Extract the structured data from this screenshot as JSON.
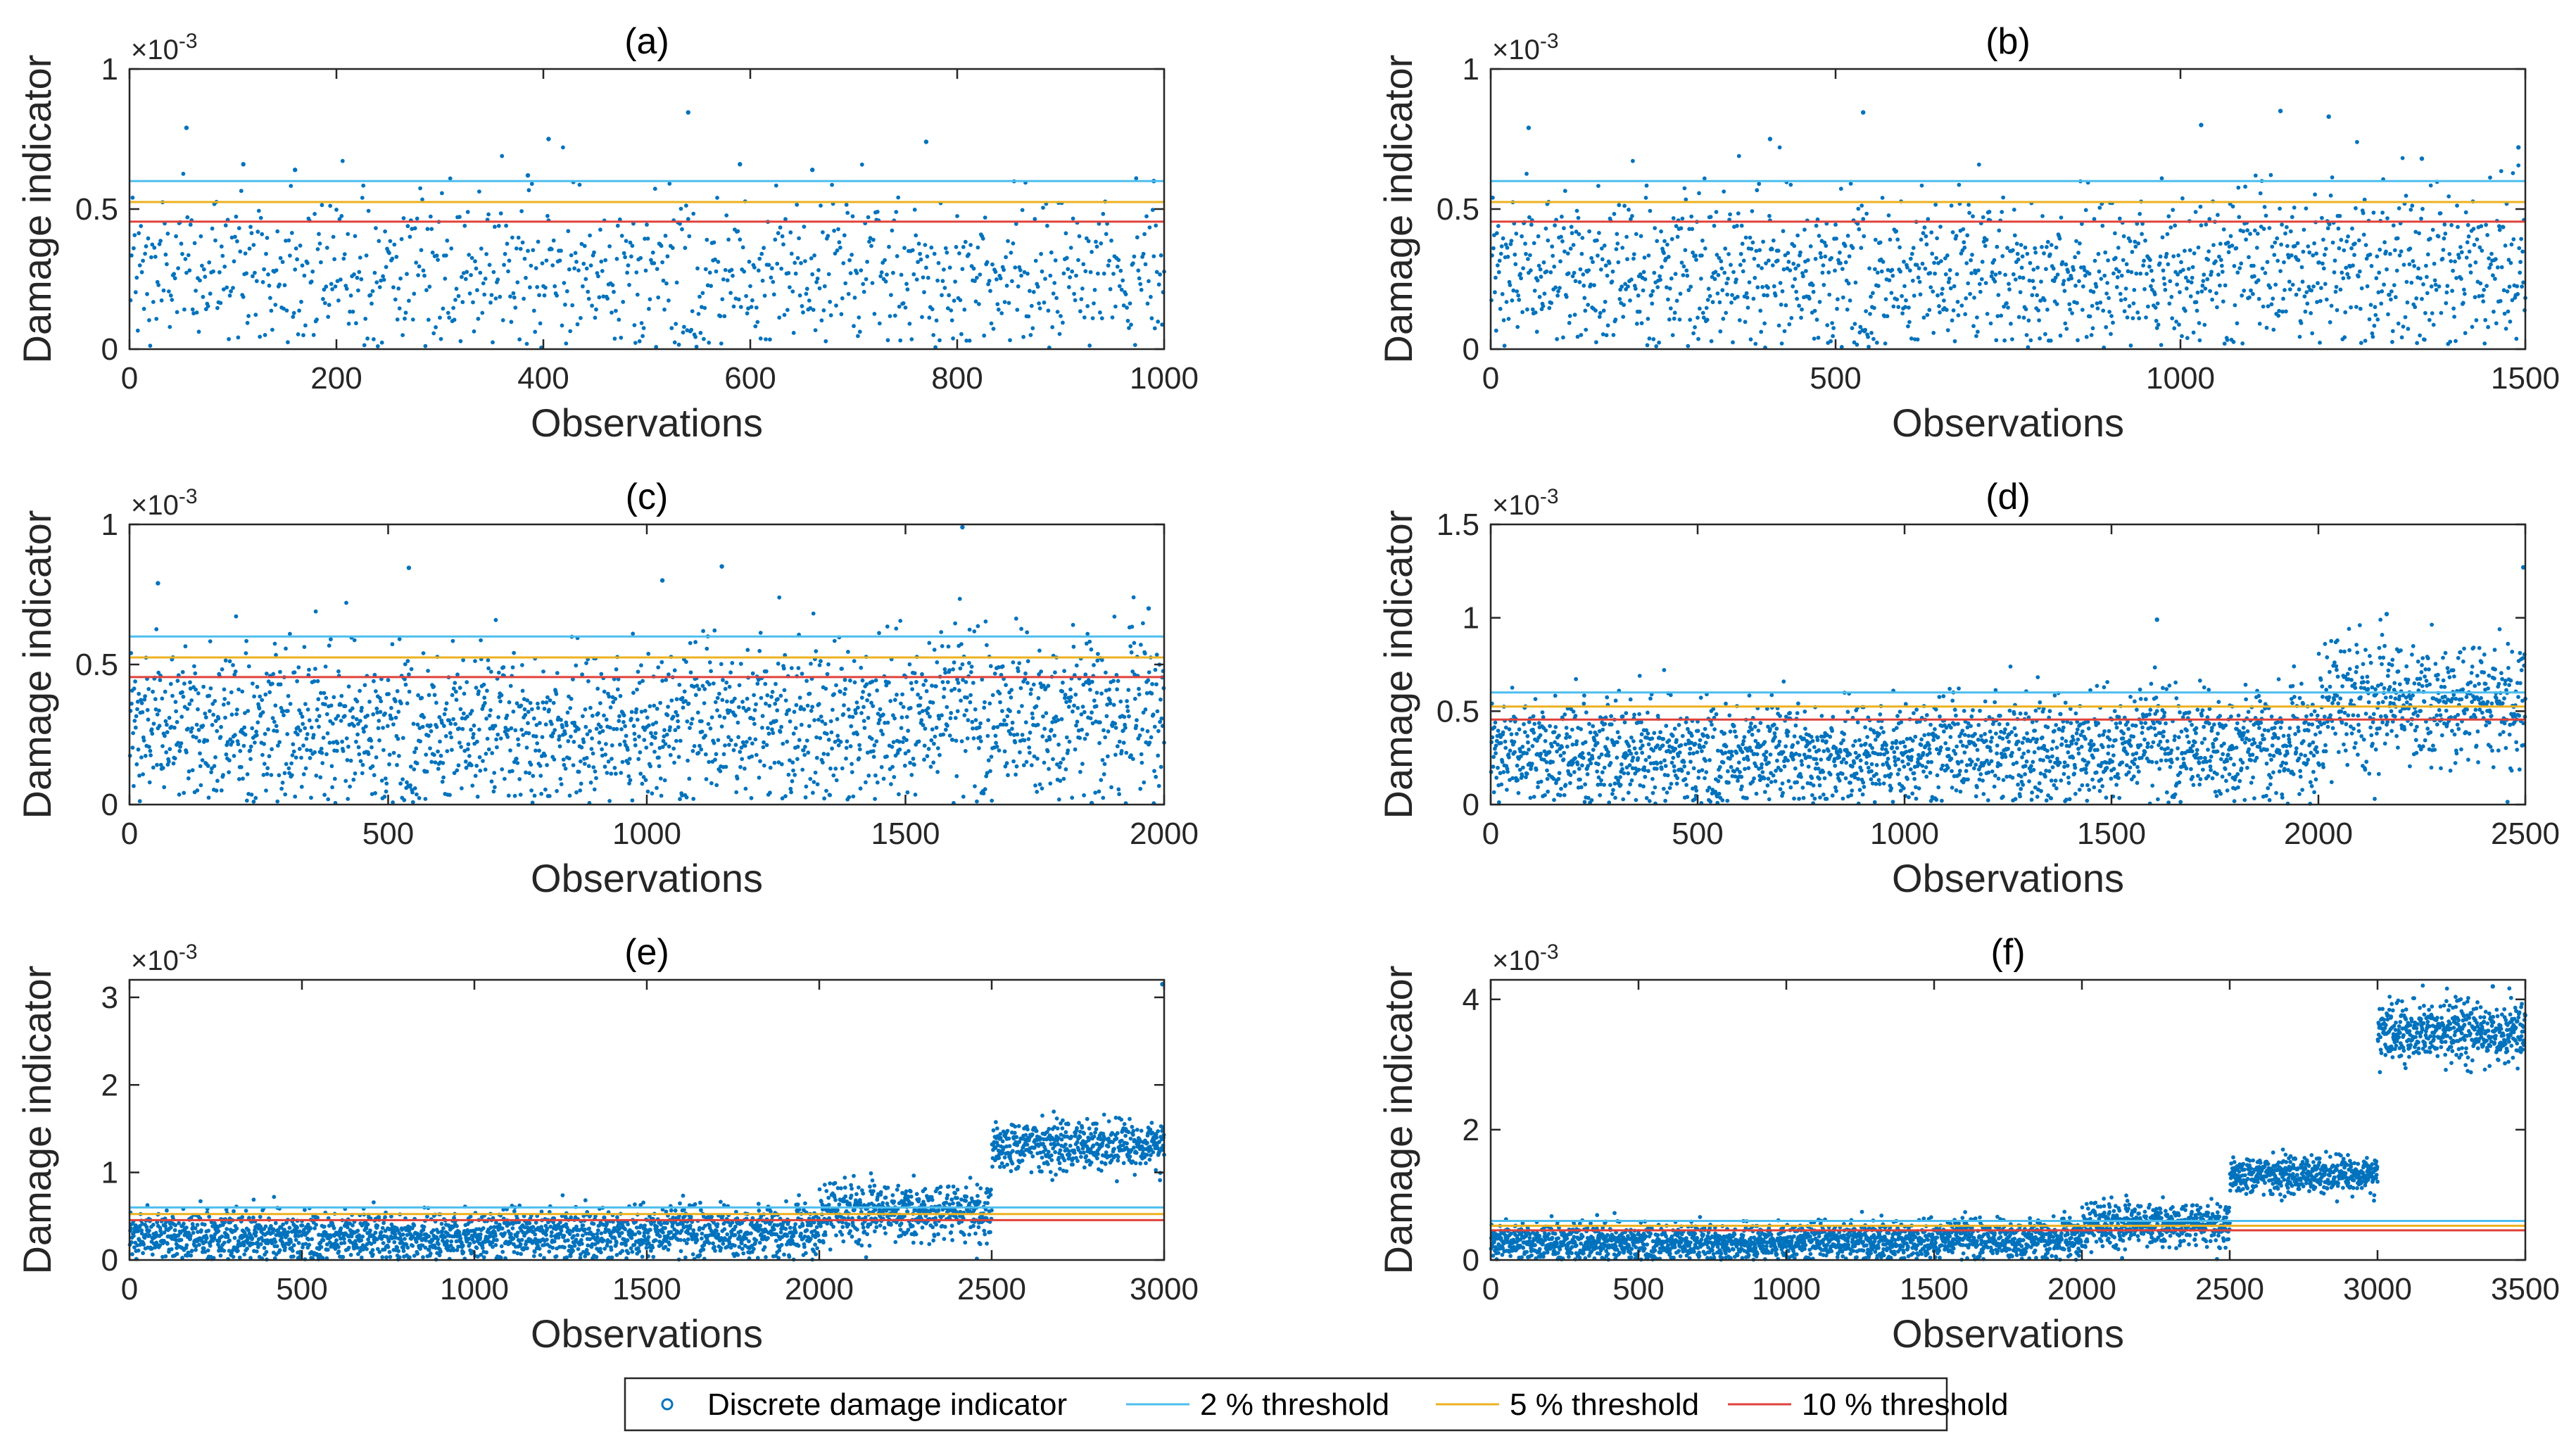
{
  "legend": {
    "items": [
      {
        "label": "Discrete damage indicator",
        "kind": "marker",
        "color": "#0072BD"
      },
      {
        "label": "2 % threshold",
        "kind": "line",
        "color": "#4DBEEE"
      },
      {
        "label": "5 % threshold",
        "kind": "line",
        "color": "#EDB120"
      },
      {
        "label": "10 % threshold",
        "kind": "line",
        "color": "#E0423A"
      }
    ]
  },
  "chart_data": [
    {
      "type": "scatter",
      "title": "(a)",
      "xlabel": "Observations",
      "ylabel": "Damage indicator",
      "y_exponent_label": "×10",
      "y_exponent": "-3",
      "xlim": [
        0,
        1000
      ],
      "ylim": [
        0,
        1
      ],
      "xticks": [
        0,
        200,
        400,
        600,
        800,
        1000
      ],
      "xtick_labels": [
        "0",
        "200",
        "400",
        "600",
        "800",
        "1000"
      ],
      "yticks": [
        0,
        0.5,
        1
      ],
      "ytick_labels": [
        "0",
        "0.5",
        "1"
      ],
      "thresholds": {
        "2 % threshold": 0.6,
        "5 % threshold": 0.525,
        "10 % threshold": 0.455
      },
      "series": [
        {
          "name": "Discrete damage indicator",
          "n": 1000,
          "segments": [
            {
              "from": 0,
              "to": 1000,
              "mean": 0.27,
              "sd": 0.145
            }
          ]
        }
      ],
      "outliers": [
        [
          55,
          0.79
        ],
        [
          110,
          0.66
        ],
        [
          160,
          0.64
        ],
        [
          385,
          0.62
        ],
        [
          405,
          0.75
        ],
        [
          540,
          0.845
        ],
        [
          590,
          0.66
        ],
        [
          770,
          0.74
        ],
        [
          660,
          0.64
        ],
        [
          990,
          0.6
        ]
      ],
      "color": "#0072BD"
    },
    {
      "type": "scatter",
      "title": "(b)",
      "xlabel": "Observations",
      "ylabel": "Damage indicator",
      "y_exponent_label": "×10",
      "y_exponent": "-3",
      "xlim": [
        0,
        1500
      ],
      "ylim": [
        0,
        1
      ],
      "xticks": [
        0,
        500,
        1000,
        1500
      ],
      "xtick_labels": [
        "0",
        "500",
        "1000",
        "1500"
      ],
      "yticks": [
        0,
        0.5,
        1
      ],
      "ytick_labels": [
        "0",
        "0.5",
        "1"
      ],
      "thresholds": {
        "2 % threshold": 0.6,
        "5 % threshold": 0.525,
        "10 % threshold": 0.455
      },
      "series": [
        {
          "name": "Discrete damage indicator",
          "n": 1500,
          "segments": [
            {
              "from": 0,
              "to": 1000,
              "mean": 0.27,
              "sd": 0.145
            },
            {
              "from": 1000,
              "to": 1500,
              "mean": 0.3,
              "sd": 0.15
            }
          ]
        }
      ],
      "outliers": [
        [
          55,
          0.79
        ],
        [
          405,
          0.75
        ],
        [
          540,
          0.845
        ],
        [
          1030,
          0.8
        ],
        [
          1145,
          0.85
        ],
        [
          1215,
          0.83
        ],
        [
          1350,
          0.68
        ],
        [
          1490,
          0.72
        ]
      ],
      "color": "#0072BD"
    },
    {
      "type": "scatter",
      "title": "(c)",
      "xlabel": "Observations",
      "ylabel": "Damage indicator",
      "y_exponent_label": "×10",
      "y_exponent": "-3",
      "xlim": [
        0,
        2000
      ],
      "ylim": [
        0,
        1
      ],
      "xticks": [
        0,
        500,
        1000,
        1500,
        2000
      ],
      "xtick_labels": [
        "0",
        "500",
        "1000",
        "1500",
        "2000"
      ],
      "yticks": [
        0,
        0.5,
        1
      ],
      "ytick_labels": [
        "0",
        "0.5",
        "1"
      ],
      "thresholds": {
        "2 % threshold": 0.6,
        "5 % threshold": 0.525,
        "10 % threshold": 0.455
      },
      "series": [
        {
          "name": "Discrete damage indicator",
          "n": 2000,
          "segments": [
            {
              "from": 0,
              "to": 1000,
              "mean": 0.27,
              "sd": 0.145
            },
            {
              "from": 1000,
              "to": 1500,
              "mean": 0.3,
              "sd": 0.15
            },
            {
              "from": 1500,
              "to": 2000,
              "mean": 0.32,
              "sd": 0.155
            }
          ]
        }
      ],
      "outliers": [
        [
          55,
          0.79
        ],
        [
          540,
          0.845
        ],
        [
          1030,
          0.8
        ],
        [
          1145,
          0.85
        ],
        [
          1610,
          0.99
        ],
        [
          1860,
          0.005
        ],
        [
          1970,
          0.7
        ]
      ],
      "color": "#0072BD"
    },
    {
      "type": "scatter",
      "title": "(d)",
      "xlabel": "Observations",
      "ylabel": "Damage indicator",
      "y_exponent_label": "×10",
      "y_exponent": "-3",
      "xlim": [
        0,
        2500
      ],
      "ylim": [
        0,
        1.5
      ],
      "xticks": [
        0,
        500,
        1000,
        1500,
        2000,
        2500
      ],
      "xtick_labels": [
        "0",
        "500",
        "1000",
        "1500",
        "2000",
        "2500"
      ],
      "yticks": [
        0,
        0.5,
        1,
        1.5
      ],
      "ytick_labels": [
        "0",
        "0.5",
        "1",
        "1.5"
      ],
      "thresholds": {
        "2 % threshold": 0.6,
        "5 % threshold": 0.525,
        "10 % threshold": 0.455
      },
      "series": [
        {
          "name": "Discrete damage indicator",
          "n": 2500,
          "segments": [
            {
              "from": 0,
              "to": 1000,
              "mean": 0.27,
              "sd": 0.145
            },
            {
              "from": 1000,
              "to": 1500,
              "mean": 0.3,
              "sd": 0.15
            },
            {
              "from": 1500,
              "to": 2000,
              "mean": 0.32,
              "sd": 0.155
            },
            {
              "from": 2000,
              "to": 2500,
              "mean": 0.55,
              "sd": 0.17
            }
          ]
        }
      ],
      "outliers": [
        [
          1610,
          0.99
        ],
        [
          2165,
          1.02
        ],
        [
          2495,
          1.27
        ]
      ],
      "color": "#0072BD"
    },
    {
      "type": "scatter",
      "title": "(e)",
      "xlabel": "Observations",
      "ylabel": "Damage indicator",
      "y_exponent_label": "×10",
      "y_exponent": "-3",
      "xlim": [
        0,
        3000
      ],
      "ylim": [
        0,
        3.2
      ],
      "xticks": [
        0,
        500,
        1000,
        1500,
        2000,
        2500,
        3000
      ],
      "xtick_labels": [
        "0",
        "500",
        "1000",
        "1500",
        "2000",
        "2500",
        "3000"
      ],
      "yticks": [
        0,
        1,
        2,
        3
      ],
      "ytick_labels": [
        "0",
        "1",
        "2",
        "3"
      ],
      "thresholds": {
        "2 % threshold": 0.6,
        "5 % threshold": 0.525,
        "10 % threshold": 0.455
      },
      "series": [
        {
          "name": "Discrete damage indicator",
          "n": 3000,
          "segments": [
            {
              "from": 0,
              "to": 1000,
              "mean": 0.27,
              "sd": 0.145
            },
            {
              "from": 1000,
              "to": 1500,
              "mean": 0.3,
              "sd": 0.15
            },
            {
              "from": 1500,
              "to": 2000,
              "mean": 0.32,
              "sd": 0.155
            },
            {
              "from": 2000,
              "to": 2500,
              "mean": 0.55,
              "sd": 0.17
            },
            {
              "from": 2500,
              "to": 3000,
              "mean": 1.32,
              "sd": 0.15
            }
          ]
        }
      ],
      "outliers": [
        [
          2995,
          3.15
        ]
      ],
      "color": "#0072BD"
    },
    {
      "type": "scatter",
      "title": "(f)",
      "xlabel": "Observations",
      "ylabel": "Damage indicator",
      "y_exponent_label": "×10",
      "y_exponent": "-3",
      "xlim": [
        0,
        3500
      ],
      "ylim": [
        0,
        4.3
      ],
      "xticks": [
        0,
        500,
        1000,
        1500,
        2000,
        2500,
        3000,
        3500
      ],
      "xtick_labels": [
        "0",
        "500",
        "1000",
        "1500",
        "2000",
        "2500",
        "3000",
        "3500"
      ],
      "yticks": [
        0,
        2,
        4
      ],
      "ytick_labels": [
        "0",
        "2",
        "4"
      ],
      "thresholds": {
        "2 % threshold": 0.6,
        "5 % threshold": 0.525,
        "10 % threshold": 0.455
      },
      "series": [
        {
          "name": "Discrete damage indicator",
          "n": 3500,
          "segments": [
            {
              "from": 0,
              "to": 1000,
              "mean": 0.27,
              "sd": 0.145
            },
            {
              "from": 1000,
              "to": 1500,
              "mean": 0.3,
              "sd": 0.15
            },
            {
              "from": 1500,
              "to": 2000,
              "mean": 0.32,
              "sd": 0.155
            },
            {
              "from": 2000,
              "to": 2500,
              "mean": 0.55,
              "sd": 0.17
            },
            {
              "from": 2500,
              "to": 3000,
              "mean": 1.32,
              "sd": 0.15
            },
            {
              "from": 3000,
              "to": 3500,
              "mean": 3.5,
              "sd": 0.22
            }
          ]
        }
      ],
      "outliers": [
        [
          3390,
          4.2
        ]
      ],
      "color": "#0072BD"
    }
  ]
}
